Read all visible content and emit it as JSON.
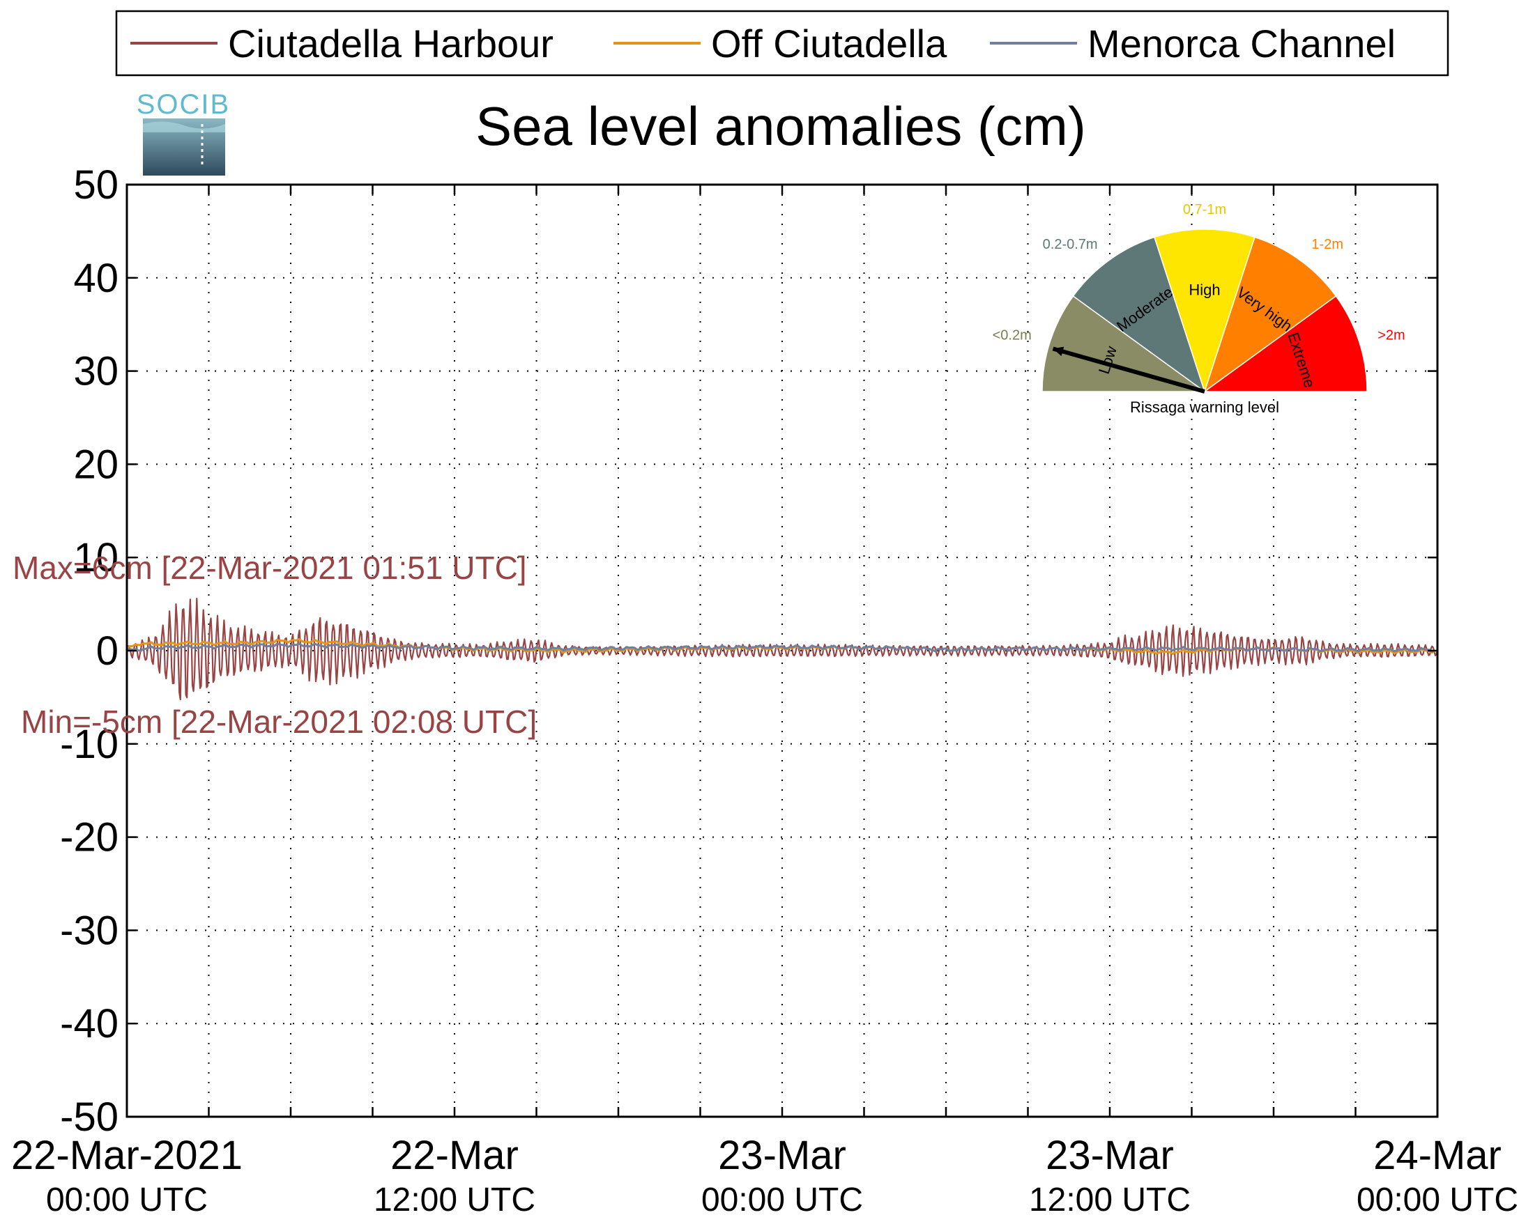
{
  "legend": {
    "entries": [
      "Ciutadella Harbour",
      "Off Ciutadella",
      "Menorca Channel"
    ],
    "placement": "top"
  },
  "logo": {
    "text": "SOCIB"
  },
  "chart_data": {
    "type": "line",
    "title": "Sea level anomalies (cm)",
    "xlabel": "",
    "ylabel": "",
    "ylim": [
      -50,
      50
    ],
    "yticks": [
      50,
      40,
      30,
      20,
      10,
      0,
      -10,
      -20,
      -30,
      -40,
      -50
    ],
    "xlim_hours": [
      0,
      48
    ],
    "xticks": [
      {
        "line1": "22-Mar-2021",
        "line2": "00:00 UTC",
        "hour": 0
      },
      {
        "line1": "22-Mar",
        "line2": "12:00 UTC",
        "hour": 12
      },
      {
        "line1": "23-Mar",
        "line2": "00:00 UTC",
        "hour": 24
      },
      {
        "line1": "23-Mar",
        "line2": "12:00 UTC",
        "hour": 36
      },
      {
        "line1": "24-Mar",
        "line2": "00:00 UTC",
        "hour": 48
      }
    ],
    "minor_tick_step_hours": 3,
    "grid": true,
    "series": [
      {
        "name": "Ciutadella Harbour",
        "color": "#994444",
        "style": "oscillation",
        "period_hours": 0.25,
        "envelope_hours": [
          0,
          1,
          1.5,
          2,
          2.5,
          3,
          3.5,
          4,
          5,
          6,
          6.5,
          7,
          8,
          9,
          10,
          11,
          12,
          13,
          14,
          15,
          16,
          17,
          18,
          20,
          22,
          24,
          26,
          28,
          30,
          32,
          34,
          36,
          36.5,
          37,
          38,
          39,
          40,
          41,
          42,
          43,
          44,
          45,
          46,
          47,
          48
        ],
        "envelope_cm": [
          0.5,
          1.5,
          3.5,
          5.5,
          5,
          4,
          3,
          2.5,
          2,
          1.5,
          2.5,
          3.5,
          3,
          2,
          1,
          0.7,
          0.7,
          0.6,
          1,
          1.2,
          0.5,
          0.4,
          0.4,
          0.5,
          0.6,
          0.6,
          0.6,
          0.5,
          0.5,
          0.5,
          0.5,
          0.8,
          1.5,
          1.5,
          2.5,
          2.5,
          2,
          1.5,
          1.2,
          1.5,
          0.8,
          0.6,
          0.7,
          0.6,
          0.5
        ]
      },
      {
        "name": "Off Ciutadella",
        "color": "#e69419",
        "style": "smooth",
        "x_hours": [
          0,
          0.5,
          1,
          2,
          3,
          4,
          5,
          6,
          8,
          10,
          12,
          14,
          16,
          18,
          20,
          24,
          28,
          30,
          32,
          34,
          36,
          38,
          40,
          42,
          44,
          46,
          48
        ],
        "y_cm": [
          0.2,
          0.8,
          0.7,
          0.8,
          0.8,
          0.8,
          0.9,
          1.1,
          0.8,
          0.5,
          0.2,
          0.1,
          0.0,
          0.1,
          0.2,
          0.3,
          0.3,
          0.1,
          0.2,
          0.2,
          0.1,
          -0.2,
          0.1,
          0.2,
          0.0,
          -0.1,
          0.0
        ]
      },
      {
        "name": "Menorca Channel",
        "color": "#7080a0",
        "style": "smooth",
        "x_hours": [
          0,
          1,
          2,
          3,
          4,
          6,
          8,
          10,
          12,
          16,
          20,
          24,
          28,
          30,
          32,
          36,
          40,
          44,
          48
        ],
        "y_cm": [
          0.0,
          0.3,
          0.4,
          0.4,
          0.5,
          0.6,
          0.5,
          0.4,
          0.3,
          0.2,
          0.3,
          0.4,
          0.3,
          0.1,
          0.2,
          0.2,
          0.2,
          0.1,
          0.1
        ]
      }
    ],
    "annotations": [
      {
        "text": "Max=6cm [22-Mar-2021 01:51 UTC]",
        "color": "#994444"
      },
      {
        "text": "Min=-5cm [22-Mar-2021 02:08 UTC]",
        "color": "#994444"
      }
    ]
  },
  "gauge": {
    "caption": "Rissaga warning level",
    "needle_level": "Low",
    "segments": [
      {
        "label": "Low",
        "range": "<0.2m",
        "color": "#8a8c66",
        "label_color": "#000000",
        "range_color": "#7b7b50"
      },
      {
        "label": "Moderate",
        "range": "0.2-0.7m",
        "color": "#5e7878",
        "label_color": "#000000",
        "range_color": "#5e7878"
      },
      {
        "label": "High",
        "range": "0.7-1m",
        "color": "#ffe600",
        "label_color": "#000000",
        "range_color": "#e6c800"
      },
      {
        "label": "Very high",
        "range": "1-2m",
        "color": "#ff8000",
        "label_color": "#000000",
        "range_color": "#ff8000"
      },
      {
        "label": "Extreme",
        "range": ">2m",
        "color": "#ff0000",
        "label_color": "#000000",
        "range_color": "#ff0000"
      }
    ]
  }
}
